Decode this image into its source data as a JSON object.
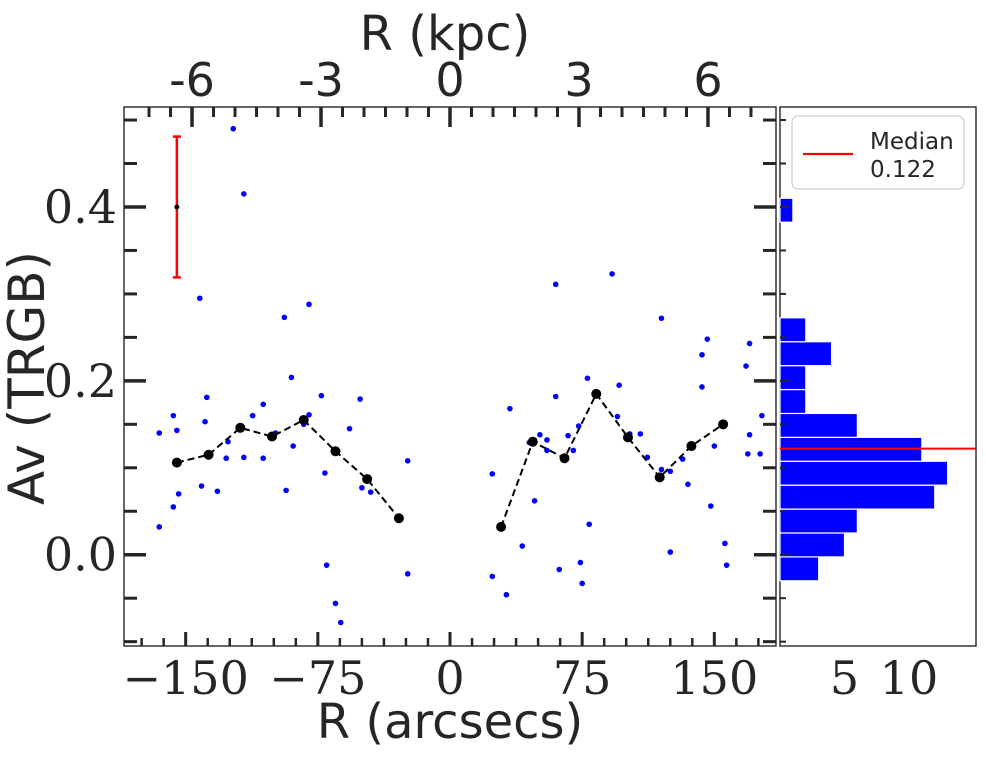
{
  "chart_data": [
    {
      "type": "scatter",
      "panel": "main",
      "xlabel": "R (arcsecs)",
      "ylabel": "Av (TRGB)",
      "xlim": [
        -185,
        185
      ],
      "ylim": [
        -0.105,
        0.515
      ],
      "xticks": [
        -150,
        -75,
        0,
        75,
        150
      ],
      "xtick_labels": [
        "−150",
        "−75",
        "0",
        "75",
        "150"
      ],
      "yticks": [
        0.0,
        0.2,
        0.4
      ],
      "ytick_labels": [
        "0.0",
        "0.2",
        "0.4"
      ],
      "top_axis": {
        "label": "R (kpc)",
        "ticks_kpc": [
          -6,
          -3,
          0,
          3,
          6
        ],
        "tick_labels": [
          "-6",
          "-3",
          "0",
          "3",
          "6"
        ],
        "arcsec_per_kpc": 24.4
      },
      "series": [
        {
          "name": "points",
          "style": "blue-dots",
          "color": "#0000ff",
          "points": [
            [
              -165,
              0.14
            ],
            [
              -157,
              0.16
            ],
            [
              -155,
              0.143
            ],
            [
              -157,
              0.055
            ],
            [
              -154,
              0.07
            ],
            [
              -165,
              0.032
            ],
            [
              -138,
              0.181
            ],
            [
              -142,
              0.295
            ],
            [
              -132,
              0.073
            ],
            [
              -141,
              0.079
            ],
            [
              -139,
              0.153
            ],
            [
              -127,
              0.111
            ],
            [
              -123,
              0.49
            ],
            [
              -126,
              0.13
            ],
            [
              -117,
              0.415
            ],
            [
              -117,
              0.112
            ],
            [
              -112,
              0.16
            ],
            [
              -106,
              0.173
            ],
            [
              -106,
              0.111
            ],
            [
              -99,
              0.14
            ],
            [
              -94,
              0.273
            ],
            [
              -90,
              0.204
            ],
            [
              -89,
              0.125
            ],
            [
              -93,
              0.074
            ],
            [
              -83,
              0.15
            ],
            [
              -80,
              0.288
            ],
            [
              -80,
              0.161
            ],
            [
              -73,
              0.183
            ],
            [
              -71,
              0.094
            ],
            [
              -70,
              -0.012
            ],
            [
              -65,
              -0.056
            ],
            [
              -62,
              -0.078
            ],
            [
              -57,
              0.145
            ],
            [
              -51,
              0.179
            ],
            [
              -50,
              0.077
            ],
            [
              -45,
              0.072
            ],
            [
              -24,
              0.108
            ],
            [
              -24,
              -0.022
            ],
            [
              24,
              0.093
            ],
            [
              24,
              -0.025
            ],
            [
              34,
              0.168
            ],
            [
              32,
              -0.046
            ],
            [
              41,
              0.01
            ],
            [
              45,
              0.129
            ],
            [
              48,
              0.062
            ],
            [
              51,
              0.138
            ],
            [
              55,
              0.12
            ],
            [
              60,
              0.182
            ],
            [
              55,
              0.132
            ],
            [
              60,
              0.311
            ],
            [
              62,
              -0.017
            ],
            [
              67,
              0.137
            ],
            [
              70,
              0.12
            ],
            [
              73,
              0.148
            ],
            [
              74,
              -0.009
            ],
            [
              75,
              -0.033
            ],
            [
              78,
              0.203
            ],
            [
              79,
              0.035
            ],
            [
              92,
              0.323
            ],
            [
              96,
              0.195
            ],
            [
              95,
              0.159
            ],
            [
              102,
              0.139
            ],
            [
              108,
              0.139
            ],
            [
              112,
              0.112
            ],
            [
              120,
              0.272
            ],
            [
              120,
              0.098
            ],
            [
              125,
              0.096
            ],
            [
              125,
              0.003
            ],
            [
              132,
              0.11
            ],
            [
              135,
              0.081
            ],
            [
              143,
              0.193
            ],
            [
              143,
              0.23
            ],
            [
              146,
              0.248
            ],
            [
              148,
              0.056
            ],
            [
              150,
              0.125
            ],
            [
              156,
              0.013
            ],
            [
              157,
              -0.012
            ],
            [
              168,
              0.217
            ],
            [
              170,
              0.243
            ],
            [
              170,
              0.138
            ],
            [
              169,
              0.116
            ],
            [
              177,
              0.16
            ],
            [
              176,
              0.116
            ]
          ]
        },
        {
          "name": "binned",
          "style": "black-dashed-line-with-dots",
          "color": "#000000",
          "points": [
            [
              -155,
              0.106
            ],
            [
              -137,
              0.115
            ],
            [
              -119,
              0.146
            ],
            [
              -101,
              0.136
            ],
            [
              -83,
              0.155
            ],
            [
              -65,
              0.119
            ],
            [
              -47,
              0.087
            ],
            [
              -29,
              0.042
            ],
            [
              29,
              0.032
            ],
            [
              47,
              0.13
            ],
            [
              65,
              0.111
            ],
            [
              83,
              0.185
            ],
            [
              101,
              0.135
            ],
            [
              119,
              0.089
            ],
            [
              137,
              0.125
            ],
            [
              155,
              0.15
            ]
          ]
        }
      ],
      "errorbar": {
        "x": -155,
        "y": 0.4,
        "yerr": 0.081,
        "color": "#ff0000"
      }
    },
    {
      "type": "bar",
      "panel": "histogram",
      "orientation": "horizontal",
      "color": "#0000ff",
      "xlim": [
        0,
        15.2
      ],
      "xticks": [
        5,
        10
      ],
      "xtick_labels": [
        "5",
        "10"
      ],
      "bin_edges": [
        -0.03,
        -0.0025,
        0.025,
        0.0525,
        0.08,
        0.1075,
        0.135,
        0.1625,
        0.19,
        0.2175,
        0.245,
        0.2725,
        0.3,
        0.3275,
        0.355,
        0.3825,
        0.41,
        0.4375
      ],
      "counts": [
        3,
        5,
        6,
        12,
        13,
        11,
        6,
        2,
        2,
        4,
        2,
        0,
        0,
        0,
        0,
        1,
        0
      ],
      "median": 0.122,
      "median_color": "#ff0000",
      "legend": {
        "position": "upper-right",
        "label": "Median",
        "value": "0.122"
      }
    }
  ]
}
